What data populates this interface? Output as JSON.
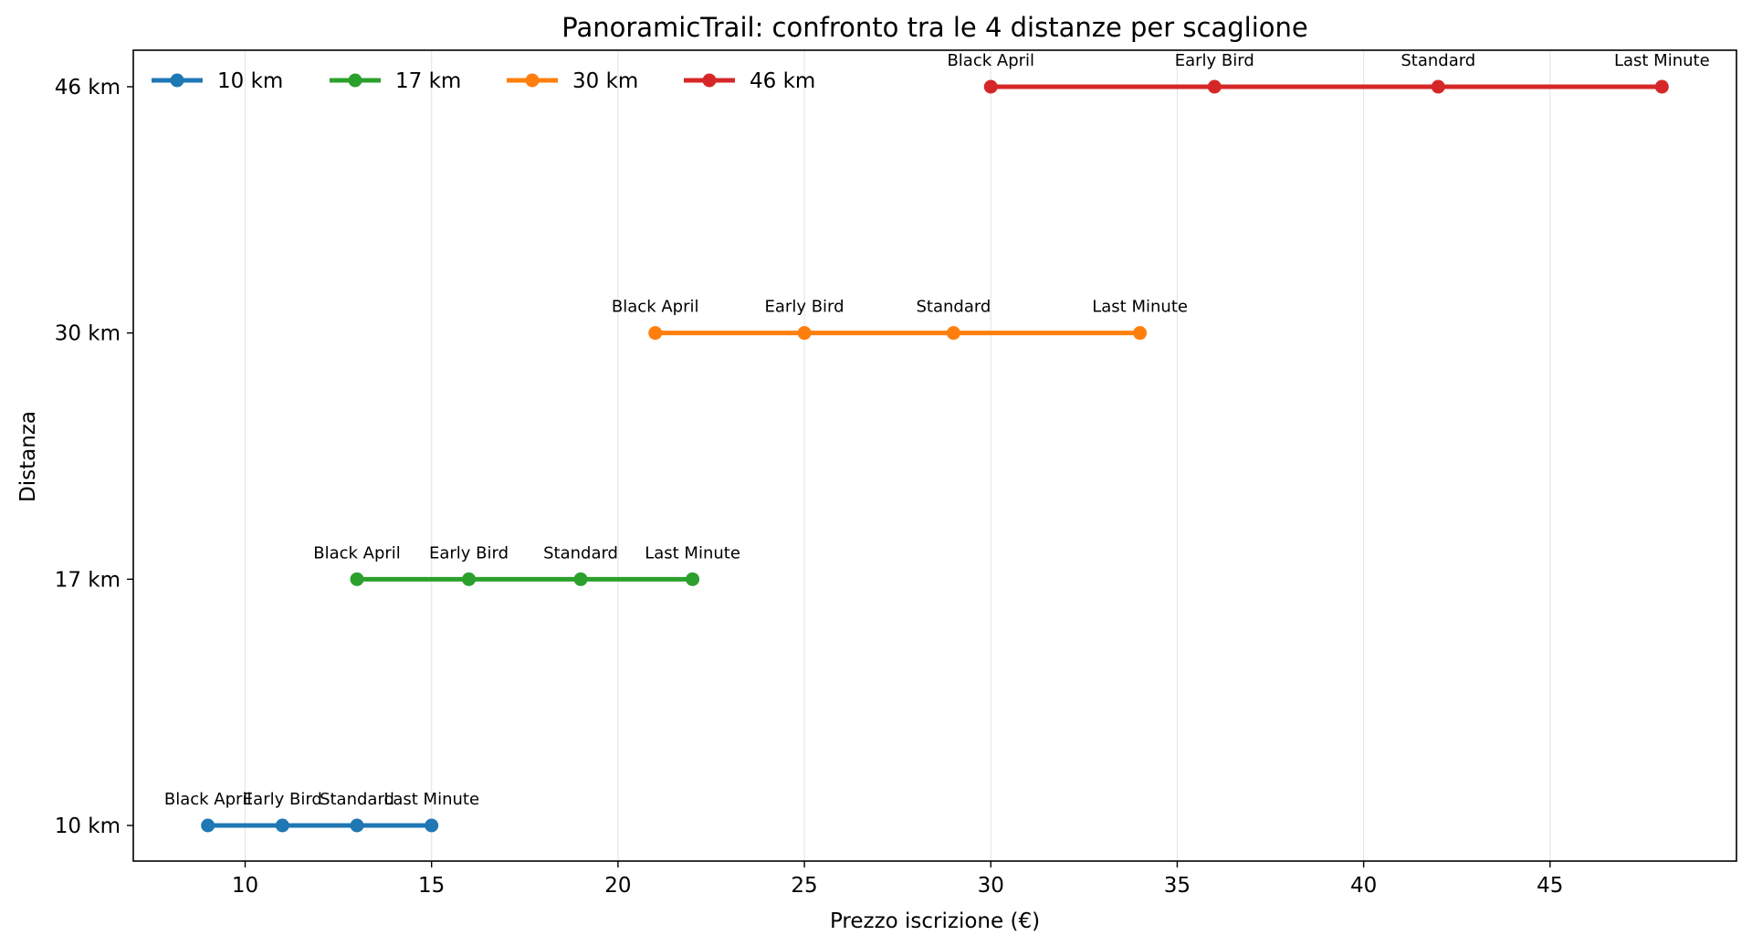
{
  "chart_data": {
    "type": "line",
    "title": "PanoramicTrail: confronto tra le 4 distanze per scaglione",
    "xlabel": "Prezzo iscrizione (€)",
    "ylabel": "Distanza",
    "xlim": [
      7,
      50
    ],
    "x_ticks": [
      10,
      15,
      20,
      25,
      30,
      35,
      40,
      45
    ],
    "categories": [
      "10 km",
      "17 km",
      "30 km",
      "46 km"
    ],
    "grid": "vertical",
    "legend": "top-left",
    "point_labels": [
      "Black April",
      "Early Bird",
      "Standard",
      "Last Minute"
    ],
    "series": [
      {
        "name": "10 km",
        "color": "#1f77b4",
        "values": [
          9,
          11,
          13,
          15
        ]
      },
      {
        "name": "17 km",
        "color": "#2ca02c",
        "values": [
          13,
          16,
          19,
          22
        ]
      },
      {
        "name": "30 km",
        "color": "#ff7f0e",
        "values": [
          21,
          25,
          29,
          34
        ]
      },
      {
        "name": "46 km",
        "color": "#d62728",
        "values": [
          30,
          36,
          42,
          48
        ]
      }
    ]
  }
}
